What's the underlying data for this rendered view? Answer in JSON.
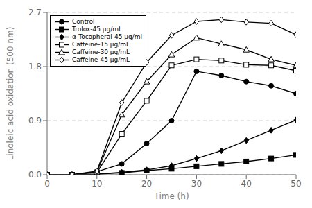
{
  "chart_data": {
    "type": "line",
    "x": [
      0,
      5,
      10,
      15,
      20,
      25,
      30,
      35,
      40,
      45,
      50
    ],
    "series": [
      {
        "name": "Control",
        "color": "#000000",
        "marker": "circle",
        "values": [
          0,
          0,
          0.05,
          0.18,
          0.52,
          0.9,
          1.72,
          1.65,
          1.55,
          1.48,
          1.35
        ]
      },
      {
        "name": "Trolox-45 μg/mL",
        "color": "#000000",
        "marker": "square",
        "values": [
          0,
          0,
          0.01,
          0.03,
          0.07,
          0.1,
          0.14,
          0.18,
          0.22,
          0.27,
          0.33
        ]
      },
      {
        "name": "α-Tocopheral-45 μg/ml",
        "color": "#000000",
        "marker": "diamond",
        "values": [
          0,
          0,
          0.01,
          0.04,
          0.08,
          0.15,
          0.27,
          0.4,
          0.57,
          0.74,
          0.91
        ]
      },
      {
        "name": "Caffeine-15 μg/mL",
        "color": "#000000",
        "marker": "square-open",
        "values": [
          0,
          0,
          0.04,
          0.68,
          1.23,
          1.82,
          1.92,
          1.9,
          1.83,
          1.82,
          1.73
        ]
      },
      {
        "name": "Caffeine-30 μg/mL",
        "color": "#000000",
        "marker": "triangle-open",
        "values": [
          0,
          0,
          0.05,
          1.0,
          1.55,
          2.0,
          2.28,
          2.18,
          2.08,
          1.92,
          1.82
        ]
      },
      {
        "name": "Caffeine-45 μg/mL",
        "color": "#000000",
        "marker": "diamond-open",
        "values": [
          0,
          0,
          0.06,
          1.2,
          1.87,
          2.32,
          2.55,
          2.58,
          2.54,
          2.52,
          2.33
        ]
      }
    ],
    "xlabel": "Time (h)",
    "ylabel": "Linoleic acid oxidation (500 nm)",
    "xlim": [
      0,
      50
    ],
    "ylim": [
      0,
      2.7
    ],
    "xticks": [
      0,
      10,
      20,
      30,
      40,
      50
    ],
    "yticks": [
      {
        "value": 0,
        "label": "0.0"
      },
      0.9,
      1.8,
      2.7
    ],
    "grid": "y",
    "legend": "upper left"
  }
}
